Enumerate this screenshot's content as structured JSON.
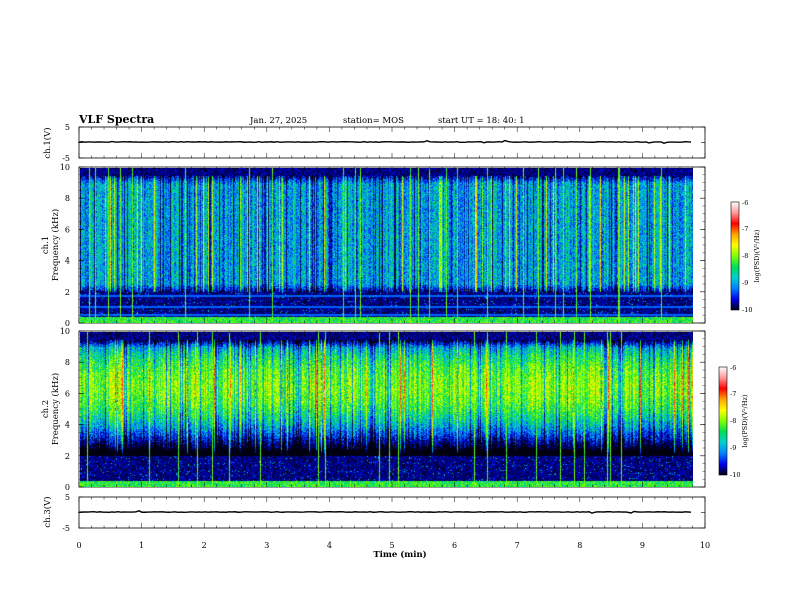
{
  "header": {
    "title": "VLF Spectra",
    "date": "Jan. 27, 2025",
    "station": "station= MOS",
    "start": "start  UT =   18: 40: 1"
  },
  "colorbar": {
    "label": "log(PSD)(V²/Hz)",
    "ticks": [
      "-6",
      "-7",
      "-8",
      "-9",
      "-10"
    ],
    "colors": [
      "#ffffff",
      "#ff9999",
      "#ff0000",
      "#ffa500",
      "#ffff00",
      "#7fff00",
      "#00dd55",
      "#00d0d0",
      "#0080ff",
      "#0000ee",
      "#000010"
    ]
  },
  "chart_data": [
    {
      "type": "line",
      "name_label": "ch.1(V)",
      "ylabel": "ch.1(V)",
      "ylim": [
        -5,
        5
      ],
      "yticks": [
        "5",
        "-5"
      ],
      "xlim": [
        0,
        10
      ],
      "x": [
        0,
        1,
        2,
        3,
        4,
        5,
        6,
        7,
        8,
        9,
        9.8
      ],
      "y": [
        0,
        0,
        0,
        0,
        0,
        0,
        0,
        0,
        0,
        0,
        0
      ]
    },
    {
      "type": "heatmap",
      "ylabel": "ch.1\nFrequency (kHz)",
      "ylabel_top": "ch.1",
      "ylabel_bottom": "Frequency (kHz)",
      "ylim": [
        0,
        10
      ],
      "yticks": [
        "0",
        "2",
        "4",
        "6",
        "8",
        "10"
      ],
      "xlim": [
        0,
        9.8
      ],
      "value_range": [
        -10,
        -6
      ],
      "band_kHz": [
        2,
        9.5
      ],
      "band_level": -8.8,
      "line_kHz": [
        0.5,
        1.0,
        1.7
      ],
      "description_units": "log(PSD)(V²/Hz)"
    },
    {
      "type": "heatmap",
      "ylabel_top": "ch.2",
      "ylabel_bottom": "Frequency (kHz)",
      "ylim": [
        0,
        10
      ],
      "yticks": [
        "0",
        "2",
        "4",
        "6",
        "8",
        "10"
      ],
      "xlim": [
        0,
        9.8
      ],
      "value_range": [
        -10,
        -6
      ],
      "band_kHz": [
        2,
        9.5
      ],
      "band_peak_kHz": 6.5,
      "band_level": -7.9,
      "description_units": "log(PSD)(V²/Hz)"
    },
    {
      "type": "line",
      "ylabel": "ch.3(V)",
      "ylim": [
        -5,
        5
      ],
      "yticks": [
        "5",
        "-5"
      ],
      "xlim": [
        0,
        10
      ],
      "x": [
        0,
        1,
        2,
        3,
        4,
        5,
        6,
        7,
        8,
        9,
        9.8
      ],
      "y": [
        0,
        0,
        0,
        0,
        0,
        0,
        0,
        0,
        0,
        0,
        0
      ]
    }
  ],
  "xaxis": {
    "label": "Time  (min)",
    "ticks": [
      "0",
      "1",
      "2",
      "3",
      "4",
      "5",
      "6",
      "7",
      "8",
      "9",
      "10"
    ]
  }
}
